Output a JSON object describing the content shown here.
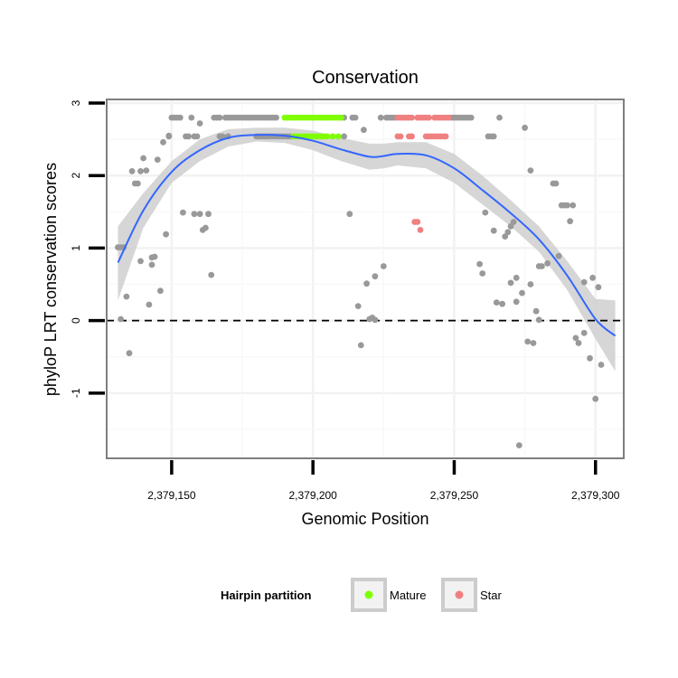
{
  "chart_data": {
    "type": "scatter",
    "title": "Conservation",
    "xlabel": "Genomic Position",
    "ylabel": "phyloP LRT conservation scores",
    "xlim": [
      2379127,
      2379310
    ],
    "ylim": [
      -1.9,
      3.05
    ],
    "x_ticks": [
      2379150,
      2379200,
      2379250,
      2379300
    ],
    "x_tick_labels": [
      "2,379,150",
      "2,379,200",
      "2,379,250",
      "2,379,300"
    ],
    "y_ticks": [
      -1,
      0,
      1,
      2,
      3
    ],
    "y_tick_labels": [
      "-1",
      "0",
      "1",
      "2",
      "3"
    ],
    "grid": true,
    "reference_line": {
      "y": 0,
      "style": "dashed"
    },
    "legend": {
      "title": "Hairpin partition",
      "position": "bottom",
      "entries": [
        {
          "label": "Mature",
          "color": "#7fff00"
        },
        {
          "label": "Star",
          "color": "#f08080"
        }
      ]
    },
    "colors": {
      "other": "#999999",
      "smooth": "#3366ff",
      "band": "#cccccc",
      "mature": "#7fff00",
      "star": "#f08080"
    },
    "series": [
      {
        "name": "Mature",
        "color": "#7fff00",
        "points": [
          [
            2379190,
            2.8
          ],
          [
            2379191,
            2.8
          ],
          [
            2379192,
            2.8
          ],
          [
            2379193,
            2.8
          ],
          [
            2379194,
            2.8
          ],
          [
            2379195,
            2.8
          ],
          [
            2379196,
            2.8
          ],
          [
            2379197,
            2.8
          ],
          [
            2379198,
            2.8
          ],
          [
            2379199,
            2.8
          ],
          [
            2379200,
            2.8
          ],
          [
            2379201,
            2.8
          ],
          [
            2379202,
            2.8
          ],
          [
            2379203,
            2.8
          ],
          [
            2379204,
            2.8
          ],
          [
            2379205,
            2.8
          ],
          [
            2379206,
            2.8
          ],
          [
            2379207,
            2.8
          ],
          [
            2379208,
            2.8
          ],
          [
            2379209,
            2.8
          ],
          [
            2379210,
            2.8
          ],
          [
            2379193,
            2.54
          ],
          [
            2379194,
            2.54
          ],
          [
            2379195,
            2.54
          ],
          [
            2379196,
            2.54
          ],
          [
            2379197,
            2.54
          ],
          [
            2379198,
            2.54
          ],
          [
            2379199,
            2.54
          ],
          [
            2379200,
            2.54
          ],
          [
            2379201,
            2.54
          ],
          [
            2379202,
            2.54
          ],
          [
            2379203,
            2.54
          ],
          [
            2379204,
            2.54
          ],
          [
            2379205,
            2.54
          ],
          [
            2379207,
            2.54
          ],
          [
            2379209,
            2.54
          ]
        ]
      },
      {
        "name": "Star",
        "color": "#f08080",
        "points": [
          [
            2379230,
            2.8
          ],
          [
            2379231,
            2.8
          ],
          [
            2379232,
            2.8
          ],
          [
            2379233,
            2.8
          ],
          [
            2379234,
            2.8
          ],
          [
            2379235,
            2.8
          ],
          [
            2379237,
            2.8
          ],
          [
            2379238,
            2.8
          ],
          [
            2379239,
            2.8
          ],
          [
            2379240,
            2.8
          ],
          [
            2379241,
            2.8
          ],
          [
            2379243,
            2.8
          ],
          [
            2379244,
            2.8
          ],
          [
            2379245,
            2.8
          ],
          [
            2379246,
            2.8
          ],
          [
            2379247,
            2.8
          ],
          [
            2379248,
            2.8
          ],
          [
            2379230,
            2.54
          ],
          [
            2379231,
            2.54
          ],
          [
            2379234,
            2.54
          ],
          [
            2379235,
            2.54
          ],
          [
            2379240,
            2.54
          ],
          [
            2379241,
            2.54
          ],
          [
            2379242,
            2.54
          ],
          [
            2379243,
            2.54
          ],
          [
            2379244,
            2.54
          ],
          [
            2379245,
            2.54
          ],
          [
            2379246,
            2.54
          ],
          [
            2379247,
            2.54
          ],
          [
            2379236,
            1.36
          ],
          [
            2379237,
            1.36
          ],
          [
            2379238,
            1.25
          ]
        ]
      },
      {
        "name": "",
        "color": "#999999",
        "points": [
          [
            2379131,
            1.01
          ],
          [
            2379132,
            1.01
          ],
          [
            2379133,
            1.01
          ],
          [
            2379132,
            0.02
          ],
          [
            2379134,
            0.33
          ],
          [
            2379135,
            -0.45
          ],
          [
            2379136,
            2.06
          ],
          [
            2379137,
            1.89
          ],
          [
            2379138,
            1.89
          ],
          [
            2379139,
            2.06
          ],
          [
            2379139,
            0.82
          ],
          [
            2379140,
            2.24
          ],
          [
            2379141,
            2.07
          ],
          [
            2379142,
            0.22
          ],
          [
            2379143,
            0.77
          ],
          [
            2379143,
            0.87
          ],
          [
            2379144,
            0.88
          ],
          [
            2379145,
            2.22
          ],
          [
            2379146,
            0.41
          ],
          [
            2379147,
            2.46
          ],
          [
            2379148,
            1.19
          ],
          [
            2379149,
            2.54
          ],
          [
            2379149,
            2.55
          ],
          [
            2379150,
            2.8
          ],
          [
            2379151,
            2.8
          ],
          [
            2379152,
            2.8
          ],
          [
            2379153,
            2.8
          ],
          [
            2379154,
            1.49
          ],
          [
            2379155,
            2.54
          ],
          [
            2379156,
            2.54
          ],
          [
            2379157,
            2.8
          ],
          [
            2379158,
            2.54
          ],
          [
            2379158,
            1.47
          ],
          [
            2379159,
            2.54
          ],
          [
            2379160,
            2.72
          ],
          [
            2379160,
            1.47
          ],
          [
            2379161,
            1.25
          ],
          [
            2379162,
            1.28
          ],
          [
            2379163,
            1.47
          ],
          [
            2379164,
            0.63
          ],
          [
            2379165,
            2.8
          ],
          [
            2379166,
            2.8
          ],
          [
            2379167,
            2.8
          ],
          [
            2379167,
            2.54
          ],
          [
            2379168,
            2.54
          ],
          [
            2379169,
            2.8
          ],
          [
            2379170,
            2.8
          ],
          [
            2379170,
            2.54
          ],
          [
            2379171,
            2.8
          ],
          [
            2379172,
            2.8
          ],
          [
            2379173,
            2.8
          ],
          [
            2379174,
            2.8
          ],
          [
            2379175,
            2.8
          ],
          [
            2379176,
            2.8
          ],
          [
            2379177,
            2.8
          ],
          [
            2379178,
            2.8
          ],
          [
            2379179,
            2.8
          ],
          [
            2379180,
            2.8
          ],
          [
            2379181,
            2.8
          ],
          [
            2379182,
            2.8
          ],
          [
            2379183,
            2.8
          ],
          [
            2379184,
            2.8
          ],
          [
            2379185,
            2.8
          ],
          [
            2379186,
            2.8
          ],
          [
            2379187,
            2.8
          ],
          [
            2379180,
            2.54
          ],
          [
            2379181,
            2.54
          ],
          [
            2379182,
            2.54
          ],
          [
            2379183,
            2.54
          ],
          [
            2379184,
            2.54
          ],
          [
            2379185,
            2.54
          ],
          [
            2379186,
            2.54
          ],
          [
            2379187,
            2.54
          ],
          [
            2379188,
            2.54
          ],
          [
            2379189,
            2.54
          ],
          [
            2379190,
            2.54
          ],
          [
            2379191,
            2.54
          ],
          [
            2379192,
            2.54
          ],
          [
            2379211,
            2.8
          ],
          [
            2379211,
            2.54
          ],
          [
            2379213,
            1.47
          ],
          [
            2379214,
            2.8
          ],
          [
            2379215,
            2.8
          ],
          [
            2379216,
            0.2
          ],
          [
            2379217,
            -0.34
          ],
          [
            2379218,
            2.63
          ],
          [
            2379219,
            0.51
          ],
          [
            2379220,
            0.02
          ],
          [
            2379221,
            0.04
          ],
          [
            2379222,
            0.01
          ],
          [
            2379222,
            0.61
          ],
          [
            2379224,
            2.8
          ],
          [
            2379225,
            0.75
          ],
          [
            2379226,
            2.8
          ],
          [
            2379227,
            2.8
          ],
          [
            2379228,
            2.8
          ],
          [
            2379229,
            2.8
          ],
          [
            2379249,
            2.8
          ],
          [
            2379250,
            2.8
          ],
          [
            2379251,
            2.8
          ],
          [
            2379252,
            2.8
          ],
          [
            2379253,
            2.8
          ],
          [
            2379254,
            2.8
          ],
          [
            2379255,
            2.8
          ],
          [
            2379256,
            2.8
          ],
          [
            2379259,
            0.78
          ],
          [
            2379260,
            0.65
          ],
          [
            2379261,
            1.49
          ],
          [
            2379262,
            2.54
          ],
          [
            2379263,
            2.54
          ],
          [
            2379264,
            2.54
          ],
          [
            2379264,
            1.24
          ],
          [
            2379265,
            0.25
          ],
          [
            2379266,
            2.8
          ],
          [
            2379267,
            0.23
          ],
          [
            2379268,
            1.16
          ],
          [
            2379269,
            1.22
          ],
          [
            2379270,
            0.52
          ],
          [
            2379270,
            1.3
          ],
          [
            2379271,
            1.36
          ],
          [
            2379272,
            0.59
          ],
          [
            2379272,
            0.26
          ],
          [
            2379273,
            -1.72
          ],
          [
            2379274,
            0.38
          ],
          [
            2379275,
            2.66
          ],
          [
            2379276,
            -0.29
          ],
          [
            2379277,
            2.07
          ],
          [
            2379277,
            0.5
          ],
          [
            2379278,
            -0.31
          ],
          [
            2379279,
            0.13
          ],
          [
            2379280,
            0.01
          ],
          [
            2379280,
            0.75
          ],
          [
            2379281,
            0.75
          ],
          [
            2379283,
            0.79
          ],
          [
            2379285,
            1.89
          ],
          [
            2379286,
            1.89
          ],
          [
            2379287,
            0.89
          ],
          [
            2379288,
            1.59
          ],
          [
            2379289,
            1.59
          ],
          [
            2379290,
            1.59
          ],
          [
            2379291,
            1.37
          ],
          [
            2379292,
            1.59
          ],
          [
            2379293,
            -0.24
          ],
          [
            2379294,
            -0.31
          ],
          [
            2379296,
            -0.17
          ],
          [
            2379296,
            0.53
          ],
          [
            2379298,
            -0.52
          ],
          [
            2379299,
            0.59
          ],
          [
            2379300,
            -1.08
          ],
          [
            2379301,
            0.46
          ],
          [
            2379302,
            -0.61
          ]
        ]
      }
    ],
    "smooth_fit": {
      "x": [
        2379131,
        2379140,
        2379150,
        2379160,
        2379170,
        2379180,
        2379190,
        2379200,
        2379210,
        2379220,
        2379225,
        2379230,
        2379240,
        2379250,
        2379260,
        2379270,
        2379280,
        2379290,
        2379300,
        2379307
      ],
      "y": [
        0.8,
        1.52,
        2.05,
        2.35,
        2.52,
        2.56,
        2.55,
        2.48,
        2.36,
        2.26,
        2.27,
        2.3,
        2.28,
        2.1,
        1.8,
        1.48,
        1.12,
        0.62,
        0.02,
        -0.21
      ],
      "lower": [
        0.28,
        1.28,
        1.9,
        2.2,
        2.4,
        2.47,
        2.45,
        2.35,
        2.2,
        2.08,
        2.1,
        2.14,
        2.1,
        1.9,
        1.6,
        1.3,
        0.95,
        0.42,
        -0.25,
        -0.7
      ],
      "upper": [
        1.3,
        1.76,
        2.2,
        2.5,
        2.64,
        2.66,
        2.66,
        2.62,
        2.52,
        2.44,
        2.44,
        2.46,
        2.46,
        2.3,
        2.0,
        1.66,
        1.3,
        0.82,
        0.3,
        0.28
      ]
    }
  }
}
